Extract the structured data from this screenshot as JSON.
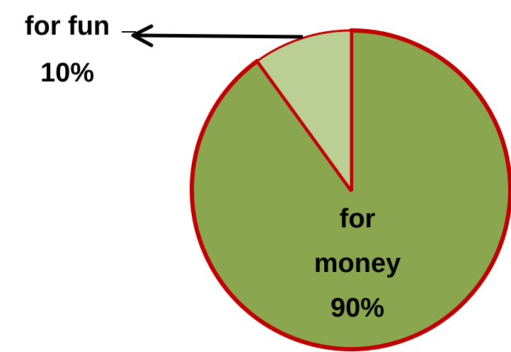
{
  "chart_data": {
    "type": "pie",
    "categories": [
      "for money",
      "for fun"
    ],
    "values": [
      90,
      10
    ],
    "value_labels": [
      "90%",
      "10%"
    ],
    "colors": [
      "#8aa64e",
      "#bbcf95"
    ],
    "edge_color": "#c00000",
    "start_angle": 0,
    "direction": "clockwise"
  }
}
